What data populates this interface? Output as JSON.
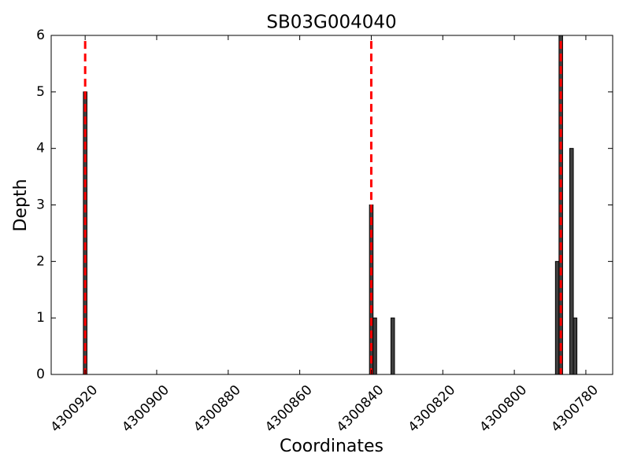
{
  "chart_data": {
    "type": "bar",
    "title": "SB03G004040",
    "x_label": "Coordinates",
    "y_label": "Depth",
    "x": [
      4300920,
      4300840,
      4300839,
      4300834,
      4300788,
      4300787,
      4300784,
      4300783
    ],
    "values": [
      5,
      3,
      1,
      1,
      2,
      6,
      4,
      1
    ],
    "color": "#404040",
    "edge_color": "#000000",
    "bar_width": 1,
    "vlines": [
      4300920,
      4300840,
      4300787
    ],
    "vline_color": "#ff0000",
    "vline_top": 5.9,
    "xlim": [
      4300929.5,
      4300772.5
    ],
    "xticks": [
      4300920,
      4300900,
      4300880,
      4300860,
      4300840,
      4300820,
      4300800,
      4300780
    ],
    "ylim": [
      0,
      6
    ],
    "yticks": [
      0,
      1,
      2,
      3,
      4,
      5,
      6
    ],
    "grid": false
  }
}
